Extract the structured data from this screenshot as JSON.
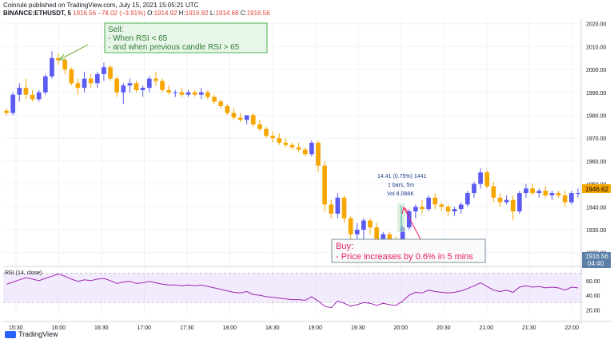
{
  "header": {
    "line1": "Coinrule published on TradingView.com, July 15, 2021 15:05:21 UTC",
    "symbol": "BINANCE:ETHUSDT, 5",
    "last": "1916.56",
    "change": "−78.02 (−3.91%)",
    "o_label": "O:",
    "o_val": "1914.92",
    "h_label": "H:",
    "h_val": "1916.82",
    "l_label": "L:",
    "l_val": "1914.68",
    "c_label": "C:",
    "c_val": "1916.56"
  },
  "annotations": {
    "sell": [
      "Sell:",
      "- When RSI < 65",
      "- and when previous candle RSI > 65"
    ],
    "buy": [
      "Buy:",
      "- Price increases by 0.6% in 5 mins"
    ],
    "measure": [
      "14.41 (0.75%) 1441",
      "1 bars, 5m",
      "Vol 8.088K"
    ]
  },
  "price_labels": {
    "current": "1946.62",
    "last_price": "1916.56",
    "last_time": "04:40"
  },
  "rsi_title": "RSI (14, close)",
  "footer": {
    "brand": "TradingView"
  },
  "colors": {
    "up": "#f7a600",
    "down": "#5b5bf2",
    "rsi": "#9c27b0",
    "band": "#e9dcfb",
    "sell": "#4caf50",
    "buy": "#e91e63"
  },
  "chart_data": [
    {
      "type": "candlestick",
      "ylim": [
        1915,
        2022
      ],
      "yticks": [
        1920,
        1930,
        1940,
        1950,
        1960,
        1970,
        1980,
        1990,
        2000,
        2010,
        2020
      ],
      "xticks": [
        "15:30",
        "16:00",
        "16:30",
        "17:00",
        "17:30",
        "18:00",
        "18:30",
        "19:00",
        "19:30",
        "20:00",
        "20:30",
        "21:00",
        "21:30",
        "22:00"
      ],
      "candles": [
        [
          1982,
          1983,
          1980,
          1981
        ],
        [
          1981,
          1990,
          1980,
          1989
        ],
        [
          1989,
          1994,
          1986,
          1992
        ],
        [
          1992,
          1996,
          1987,
          1989
        ],
        [
          1989,
          1991,
          1986,
          1987
        ],
        [
          1987,
          1991,
          1986,
          1990
        ],
        [
          1990,
          1998,
          1989,
          1997
        ],
        [
          1997,
          2008,
          1996,
          2005
        ],
        [
          2005,
          2007,
          2002,
          2004
        ],
        [
          2004,
          2005,
          1998,
          2000
        ],
        [
          2000,
          2001,
          1993,
          1994
        ],
        [
          1994,
          1996,
          1989,
          1992
        ],
        [
          1992,
          1999,
          1990,
          1996
        ],
        [
          1996,
          1998,
          1992,
          1994
        ],
        [
          1994,
          1999,
          1992,
          1998
        ],
        [
          1998,
          2003,
          1995,
          2001
        ],
        [
          2001,
          2002,
          1995,
          1996
        ],
        [
          1996,
          1997,
          1988,
          1990
        ],
        [
          1990,
          1994,
          1985,
          1993
        ],
        [
          1993,
          1996,
          1990,
          1994
        ],
        [
          1994,
          1995,
          1990,
          1991
        ],
        [
          1991,
          1993,
          1988,
          1992
        ],
        [
          1992,
          1997,
          1990,
          1996
        ],
        [
          1996,
          1999,
          1993,
          1995
        ],
        [
          1995,
          1996,
          1990,
          1991
        ],
        [
          1991,
          1993,
          1989,
          1990
        ],
        [
          1990,
          1991,
          1988,
          1990
        ],
        [
          1990,
          1992,
          1988,
          1989
        ],
        [
          1989,
          1991,
          1988,
          1990
        ],
        [
          1990,
          1991,
          1988,
          1989
        ],
        [
          1989,
          1992,
          1987,
          1990
        ],
        [
          1990,
          1991,
          1987,
          1988
        ],
        [
          1988,
          1989,
          1985,
          1986
        ],
        [
          1986,
          1987,
          1983,
          1984
        ],
        [
          1984,
          1985,
          1980,
          1981
        ],
        [
          1981,
          1983,
          1978,
          1979
        ],
        [
          1979,
          1981,
          1977,
          1978
        ],
        [
          1978,
          1980,
          1976,
          1980
        ],
        [
          1980,
          1981,
          1975,
          1976
        ],
        [
          1976,
          1978,
          1973,
          1974
        ],
        [
          1974,
          1975,
          1970,
          1971
        ],
        [
          1971,
          1973,
          1968,
          1970
        ],
        [
          1970,
          1972,
          1967,
          1968
        ],
        [
          1968,
          1970,
          1966,
          1967
        ],
        [
          1967,
          1968,
          1965,
          1966
        ],
        [
          1966,
          1968,
          1964,
          1965
        ],
        [
          1965,
          1966,
          1962,
          1963
        ],
        [
          1963,
          1969,
          1962,
          1968
        ],
        [
          1968,
          1969,
          1955,
          1958
        ],
        [
          1958,
          1960,
          1938,
          1941
        ],
        [
          1941,
          1943,
          1935,
          1937
        ],
        [
          1937,
          1946,
          1935,
          1944
        ],
        [
          1944,
          1945,
          1933,
          1935
        ],
        [
          1935,
          1936,
          1925,
          1928
        ],
        [
          1928,
          1933,
          1924,
          1930
        ],
        [
          1930,
          1935,
          1926,
          1934
        ],
        [
          1934,
          1935,
          1928,
          1931
        ],
        [
          1931,
          1933,
          1924,
          1926
        ],
        [
          1926,
          1929,
          1922,
          1928
        ],
        [
          1928,
          1929,
          1924,
          1926
        ],
        [
          1926,
          1927,
          1924,
          1925
        ],
        [
          1925,
          1932,
          1924,
          1931
        ],
        [
          1931,
          1939,
          1930,
          1938
        ],
        [
          1938,
          1941,
          1935,
          1940
        ],
        [
          1940,
          1943,
          1937,
          1939
        ],
        [
          1939,
          1945,
          1938,
          1944
        ],
        [
          1944,
          1946,
          1939,
          1941
        ],
        [
          1941,
          1942,
          1938,
          1940
        ],
        [
          1940,
          1941,
          1936,
          1938
        ],
        [
          1938,
          1940,
          1936,
          1939
        ],
        [
          1939,
          1942,
          1937,
          1941
        ],
        [
          1941,
          1947,
          1940,
          1946
        ],
        [
          1946,
          1951,
          1944,
          1950
        ],
        [
          1950,
          1957,
          1948,
          1955
        ],
        [
          1955,
          1956,
          1948,
          1949
        ],
        [
          1949,
          1951,
          1942,
          1944
        ],
        [
          1944,
          1946,
          1940,
          1942
        ],
        [
          1942,
          1945,
          1941,
          1943
        ],
        [
          1943,
          1945,
          1934,
          1938
        ],
        [
          1938,
          1947,
          1937,
          1946
        ],
        [
          1946,
          1950,
          1944,
          1948
        ],
        [
          1948,
          1950,
          1945,
          1946
        ],
        [
          1946,
          1948,
          1944,
          1947
        ],
        [
          1947,
          1949,
          1944,
          1945
        ],
        [
          1945,
          1947,
          1943,
          1946
        ],
        [
          1946,
          1947,
          1944,
          1945
        ],
        [
          1945,
          1947,
          1940,
          1942
        ],
        [
          1942,
          1947,
          1941,
          1946
        ],
        [
          1946,
          1948,
          1944,
          1946
        ]
      ]
    },
    {
      "type": "line",
      "name": "RSI (14, close)",
      "ylim": [
        15,
        75
      ],
      "yticks": [
        20,
        40,
        60
      ],
      "band": [
        30,
        70
      ],
      "values": [
        55,
        58,
        61,
        64,
        62,
        60,
        63,
        66,
        69,
        66,
        62,
        59,
        61,
        60,
        62,
        63,
        60,
        56,
        58,
        59,
        56,
        57,
        59,
        57,
        55,
        54,
        54,
        53,
        54,
        53,
        54,
        52,
        50,
        48,
        46,
        44,
        43,
        45,
        41,
        40,
        38,
        37,
        36,
        35,
        34,
        34,
        33,
        38,
        32,
        25,
        23,
        32,
        29,
        25,
        27,
        30,
        29,
        26,
        29,
        27,
        26,
        32,
        40,
        44,
        43,
        47,
        45,
        44,
        43,
        44,
        46,
        49,
        53,
        57,
        52,
        47,
        45,
        47,
        44,
        51,
        53,
        51,
        52,
        50,
        51,
        50,
        47,
        51,
        50
      ]
    }
  ]
}
